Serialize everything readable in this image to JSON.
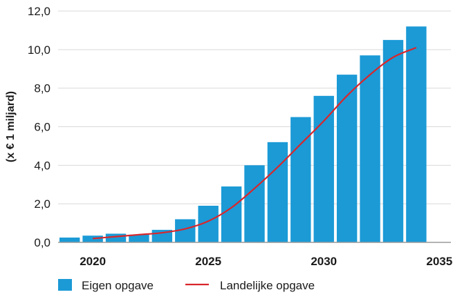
{
  "chart_data": {
    "type": "bar",
    "ylabel": "(x € 1 miljard)",
    "ylim": [
      0,
      12
    ],
    "y_ticks": [
      "0,0",
      "2,0",
      "4,0",
      "6,0",
      "8,0",
      "10,0",
      "12,0"
    ],
    "y_tick_values": [
      0,
      2,
      4,
      6,
      8,
      10,
      12
    ],
    "x_ticks": [
      "2020",
      "2025",
      "2030",
      "2035"
    ],
    "x_tick_years": [
      2020,
      2025,
      2030,
      2035
    ],
    "categories": [
      2019,
      2020,
      2021,
      2022,
      2023,
      2024,
      2025,
      2026,
      2027,
      2028,
      2029,
      2030,
      2031,
      2032,
      2033,
      2034,
      2035
    ],
    "grid": "horizontal",
    "legend_position": "bottom",
    "series": [
      {
        "name": "Eigen opgave",
        "type": "bar",
        "color": "#1b9ad6",
        "values": [
          0.25,
          0.35,
          0.45,
          0.4,
          0.65,
          1.2,
          1.9,
          2.9,
          4.0,
          5.2,
          6.5,
          7.6,
          8.7,
          9.7,
          10.5,
          11.2,
          null
        ]
      },
      {
        "name": "Landelijke opgave",
        "type": "line",
        "color": "#d9262b",
        "values": [
          null,
          0.2,
          0.3,
          0.4,
          0.5,
          0.7,
          1.1,
          1.8,
          2.8,
          3.9,
          5.1,
          6.3,
          7.6,
          8.7,
          9.6,
          10.1,
          null
        ]
      }
    ]
  }
}
